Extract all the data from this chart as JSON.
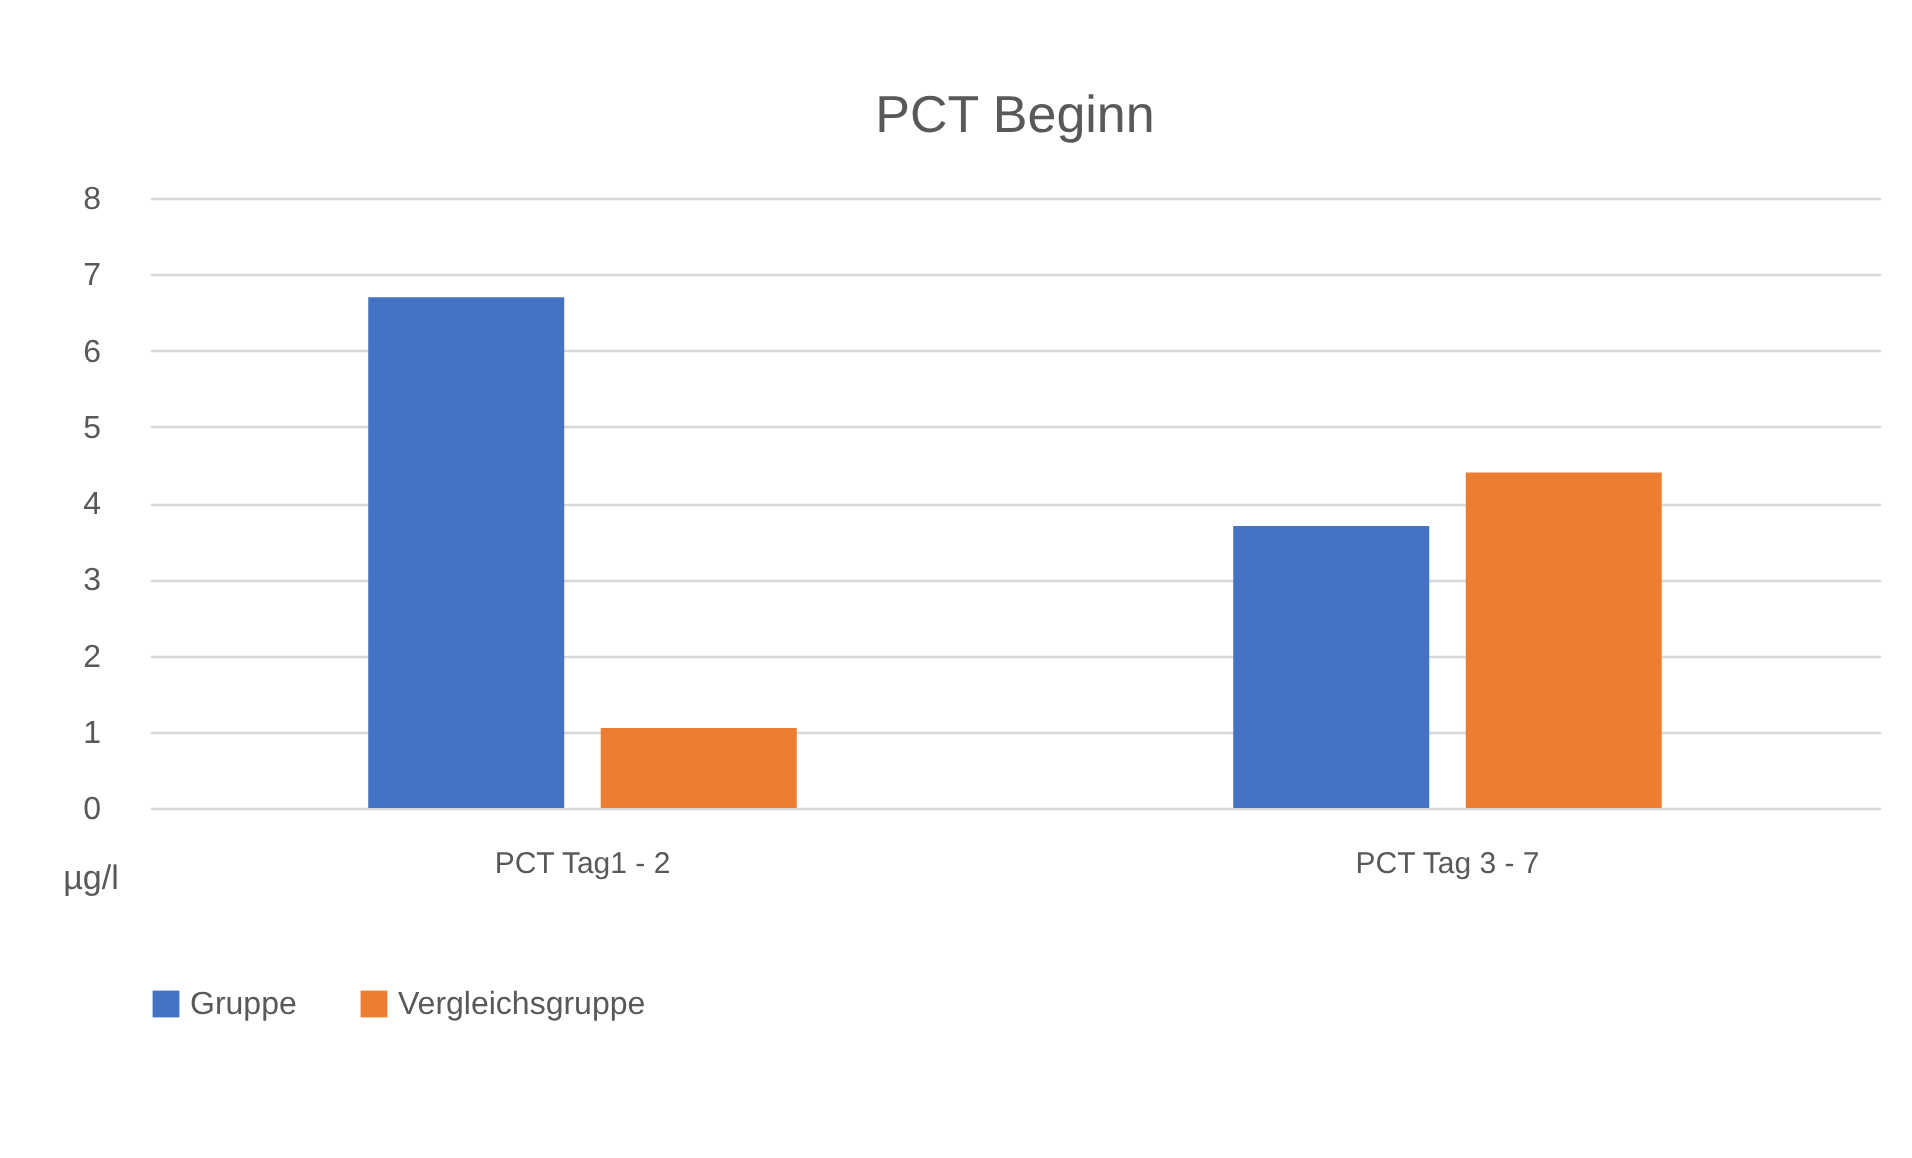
{
  "chart_data": {
    "type": "bar",
    "title": "PCT Beginn",
    "ylabel": "µg/l",
    "categories": [
      "PCT  Tag1 - 2",
      "PCT Tag 3 - 7"
    ],
    "series": [
      {
        "name": "Gruppe",
        "color": "#4472c4",
        "values": [
          6.7,
          3.7
        ]
      },
      {
        "name": "Vergleichsgruppe",
        "color": "#ed7d31",
        "values": [
          1.05,
          4.4
        ]
      }
    ],
    "ylim": [
      0,
      8
    ],
    "yticks": [
      0,
      1,
      2,
      3,
      4,
      5,
      6,
      7,
      8
    ],
    "grid": "y",
    "legend": "bottom"
  }
}
